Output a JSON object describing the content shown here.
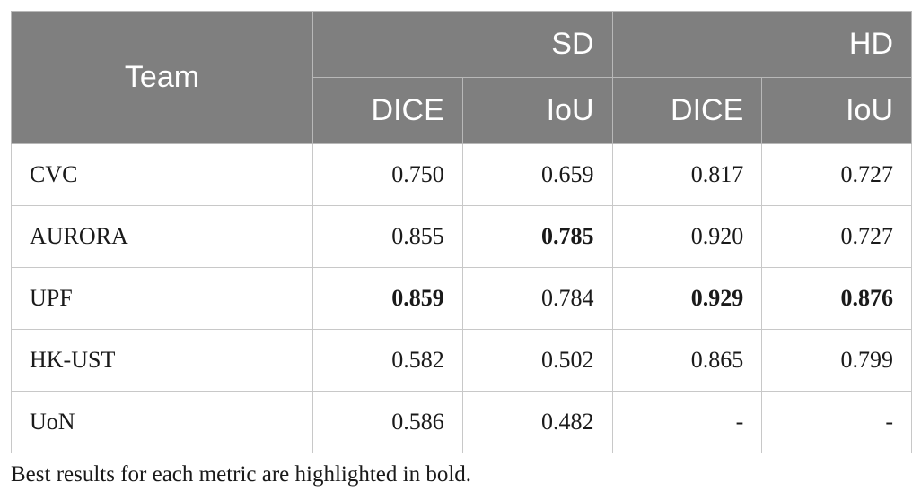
{
  "table": {
    "header": {
      "team": "Team",
      "groups": [
        "SD",
        "HD"
      ],
      "metrics": [
        "DICE",
        "IoU",
        "DICE",
        "IoU"
      ]
    },
    "rows": [
      {
        "team": "CVC",
        "values": [
          "0.750",
          "0.659",
          "0.817",
          "0.727"
        ],
        "best": [
          false,
          false,
          false,
          false
        ]
      },
      {
        "team": "AURORA",
        "values": [
          "0.855",
          "0.785",
          "0.920",
          "0.727"
        ],
        "best": [
          false,
          true,
          false,
          false
        ]
      },
      {
        "team": "UPF",
        "values": [
          "0.859",
          "0.784",
          "0.929",
          "0.876"
        ],
        "best": [
          true,
          false,
          true,
          true
        ]
      },
      {
        "team": "HK-UST",
        "values": [
          "0.582",
          "0.502",
          "0.865",
          "0.799"
        ],
        "best": [
          false,
          false,
          false,
          false
        ]
      },
      {
        "team": "UoN",
        "values": [
          "0.586",
          "0.482",
          "-",
          "-"
        ],
        "best": [
          false,
          false,
          false,
          false
        ]
      }
    ]
  },
  "footnote": "Best results for each metric are highlighted in bold."
}
